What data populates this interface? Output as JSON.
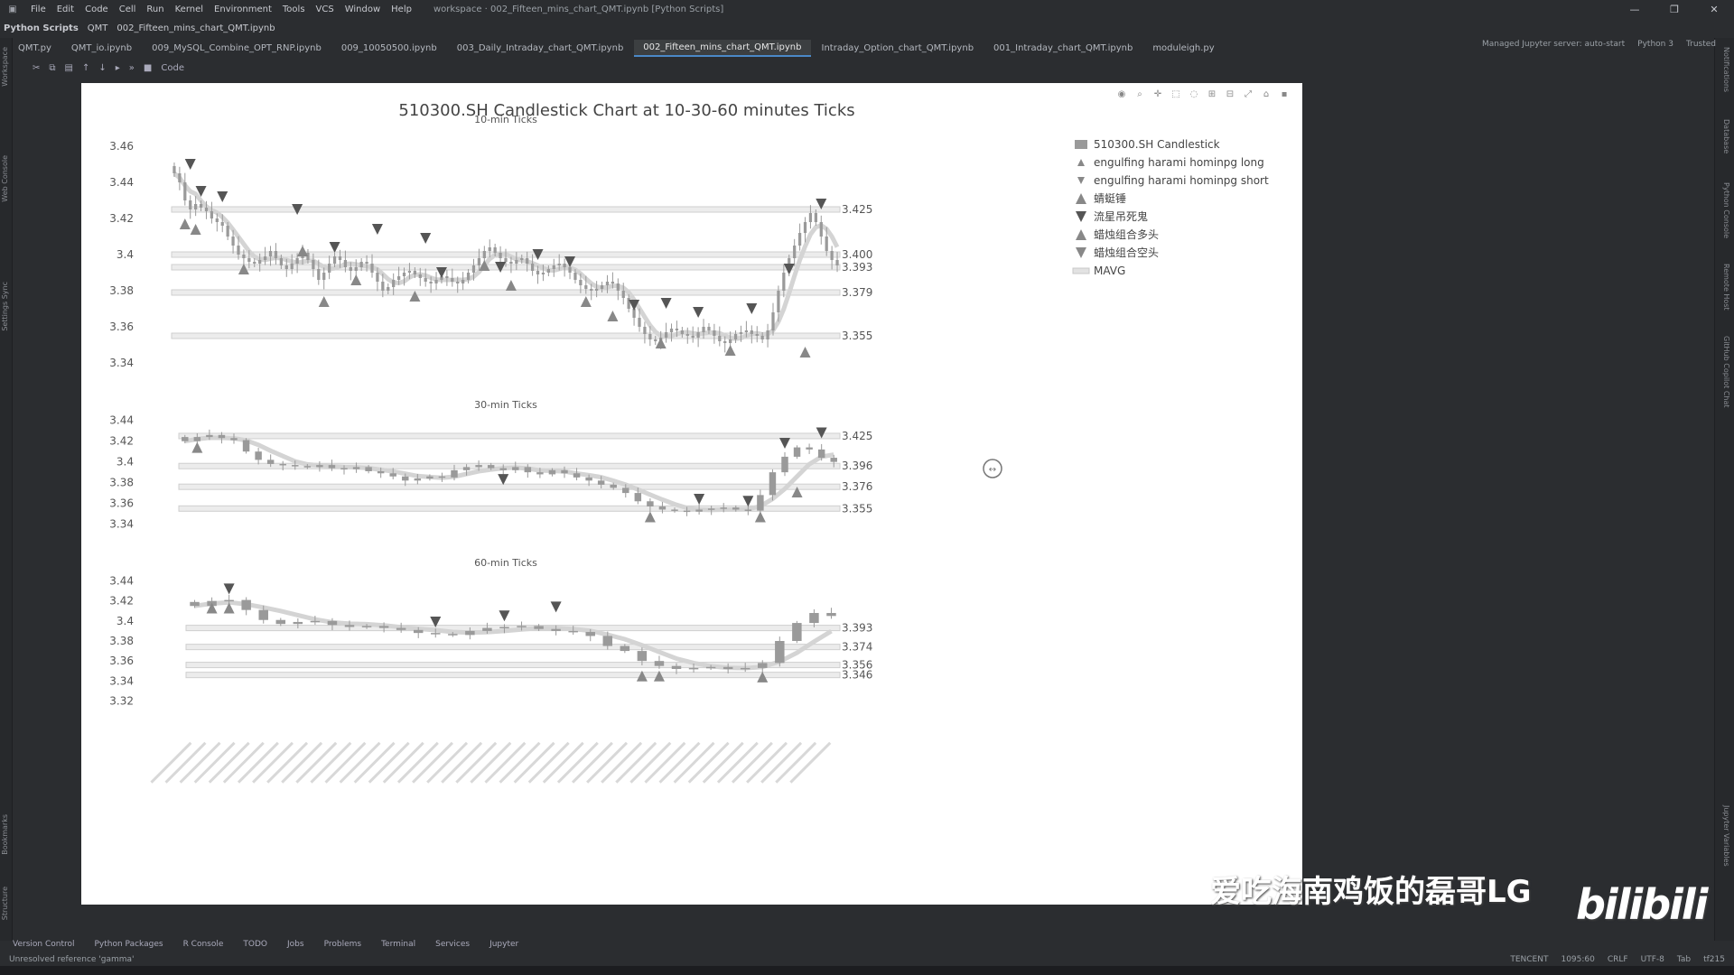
{
  "menubar": {
    "items": [
      "File",
      "Edit",
      "Code",
      "Cell",
      "Run",
      "Kernel",
      "Environment",
      "Tools",
      "VCS",
      "Window",
      "Help"
    ],
    "title": "workspace · 002_Fifteen_mins_chart_QMT.ipynb [Python Scripts]"
  },
  "navbar": {
    "crumbs": [
      "Python Scripts",
      "QMT",
      "002_Fifteen_mins_chart_QMT.ipynb"
    ]
  },
  "tabs": [
    {
      "label": "QMT.py",
      "active": false
    },
    {
      "label": "QMT_io.ipynb",
      "active": false
    },
    {
      "label": "009_MySQL_Combine_OPT_RNP.ipynb",
      "active": false
    },
    {
      "label": "009_10050500.ipynb",
      "active": false
    },
    {
      "label": "003_Daily_Intraday_chart_QMT.ipynb",
      "active": false
    },
    {
      "label": "002_Fifteen_mins_chart_QMT.ipynb",
      "active": true
    },
    {
      "label": "Intraday_Option_chart_QMT.ipynb",
      "active": false
    },
    {
      "label": "001_Intraday_chart_QMT.ipynb",
      "active": false
    },
    {
      "label": "moduleigh.py",
      "active": false
    }
  ],
  "tabright": [
    "Managed Jupyter server: auto-start",
    "Python 3",
    "Trusted"
  ],
  "toolbar": {
    "cell_type": "Code"
  },
  "leftstrip": [
    "Workspace",
    "Web Console",
    "Settings Sync",
    "Bookmarks",
    "Structure"
  ],
  "rightstrip": [
    "Notifications",
    "Database",
    "Python Console",
    "Remote Host",
    "GitHub Copilot Chat",
    "Jupyter Variables"
  ],
  "bottombar": [
    "Version Control",
    "Python Packages",
    "R Console",
    "TODO",
    "Jobs",
    "Problems",
    "Terminal",
    "Services",
    "Jupyter"
  ],
  "statusbar": {
    "left": "Unresolved reference 'gamma'",
    "right": [
      "TENCENT",
      "1095:60",
      "CRLF",
      "UTF-8",
      "Tab",
      "tf215"
    ]
  },
  "watermark": {
    "text": "爱吃海南鸡饭的磊哥LG",
    "logo": "bilibili"
  },
  "chart_data": {
    "type": "candlestick",
    "title": "510300.SH Candlestick Chart at 10-30-60 minutes Ticks",
    "legend": {
      "placement": "top-right",
      "entries": [
        {
          "label": "510300.SH Candlestick",
          "marker": "candle"
        },
        {
          "label": "engulfing harami hominpg long",
          "marker": "triangle-up-small"
        },
        {
          "label": "engulfing harami hominpg short",
          "marker": "triangle-down-small"
        },
        {
          "label": "蜻蜓锤",
          "marker": "triangle-up"
        },
        {
          "label": "流星吊死鬼",
          "marker": "triangle-down-dark"
        },
        {
          "label": "蜡烛组合多头",
          "marker": "triangle-up"
        },
        {
          "label": "蜡烛组合空头",
          "marker": "triangle-down"
        },
        {
          "label": "MAVG",
          "marker": "band"
        }
      ]
    },
    "colors": {
      "candle": "#9a9a9a",
      "marker": "#888888",
      "marker_dark": "#555555",
      "band": "#d4d4d4"
    },
    "panels": [
      {
        "subtitle": "10-min Ticks",
        "ylim": [
          3.335,
          3.465
        ],
        "yticks": [
          3.46,
          3.44,
          3.42,
          3.4,
          3.38,
          3.36,
          3.34
        ],
        "levels": [
          3.425,
          3.4,
          3.393,
          3.379,
          3.355
        ],
        "closes": [
          3.445,
          3.44,
          3.43,
          3.425,
          3.428,
          3.426,
          3.424,
          3.42,
          3.418,
          3.416,
          3.41,
          3.405,
          3.4,
          3.398,
          3.396,
          3.395,
          3.397,
          3.399,
          3.402,
          3.398,
          3.394,
          3.392,
          3.395,
          3.398,
          3.401,
          3.397,
          3.392,
          3.386,
          3.39,
          3.395,
          3.399,
          3.397,
          3.393,
          3.391,
          3.393,
          3.396,
          3.395,
          3.39,
          3.385,
          3.38,
          3.382,
          3.386,
          3.388,
          3.39,
          3.391,
          3.389,
          3.387,
          3.385,
          3.384,
          3.386,
          3.388,
          3.387,
          3.385,
          3.384,
          3.386,
          3.39,
          3.394,
          3.398,
          3.402,
          3.404,
          3.401,
          3.398,
          3.396,
          3.395,
          3.397,
          3.398,
          3.395,
          3.391,
          3.389,
          3.39,
          3.392,
          3.394,
          3.395,
          3.393,
          3.39,
          3.386,
          3.383,
          3.381,
          3.38,
          3.381,
          3.383,
          3.385,
          3.384,
          3.38,
          3.376,
          3.37,
          3.365,
          3.36,
          3.356,
          3.353,
          3.352,
          3.354,
          3.357,
          3.359,
          3.358,
          3.356,
          3.355,
          3.354,
          3.357,
          3.36,
          3.358,
          3.355,
          3.352,
          3.351,
          3.353,
          3.356,
          3.357,
          3.358,
          3.356,
          3.355,
          3.353,
          3.358,
          3.368,
          3.38,
          3.39,
          3.398,
          3.405,
          3.412,
          3.418,
          3.423,
          3.418,
          3.41,
          3.402,
          3.397,
          3.394
        ],
        "long_signals": [
          [
            2,
            3.417
          ],
          [
            4,
            3.414
          ],
          [
            13,
            3.392
          ],
          [
            24,
            3.402
          ],
          [
            28,
            3.374
          ],
          [
            34,
            3.386
          ],
          [
            45,
            3.377
          ],
          [
            58,
            3.394
          ],
          [
            63,
            3.383
          ],
          [
            77,
            3.374
          ],
          [
            82,
            3.366
          ],
          [
            91,
            3.351
          ],
          [
            104,
            3.347
          ],
          [
            118,
            3.346
          ]
        ],
        "short_signals": [
          [
            3,
            3.45
          ],
          [
            5,
            3.435
          ],
          [
            9,
            3.432
          ],
          [
            23,
            3.425
          ],
          [
            30,
            3.404
          ],
          [
            38,
            3.414
          ],
          [
            47,
            3.409
          ],
          [
            50,
            3.39
          ],
          [
            61,
            3.393
          ],
          [
            68,
            3.4
          ],
          [
            74,
            3.396
          ],
          [
            86,
            3.372
          ],
          [
            92,
            3.373
          ],
          [
            98,
            3.368
          ],
          [
            108,
            3.37
          ],
          [
            115,
            3.392
          ],
          [
            121,
            3.428
          ]
        ]
      },
      {
        "subtitle": "30-min Ticks",
        "ylim": [
          3.33,
          3.445
        ],
        "yticks": [
          3.44,
          3.42,
          3.4,
          3.38,
          3.36,
          3.34
        ],
        "levels": [
          3.425,
          3.396,
          3.376,
          3.355
        ],
        "closes": [
          3.42,
          3.424,
          3.426,
          3.423,
          3.421,
          3.41,
          3.402,
          3.398,
          3.397,
          3.396,
          3.395,
          3.397,
          3.394,
          3.393,
          3.395,
          3.391,
          3.389,
          3.386,
          3.382,
          3.384,
          3.386,
          3.385,
          3.392,
          3.395,
          3.397,
          3.394,
          3.392,
          3.395,
          3.39,
          3.388,
          3.392,
          3.389,
          3.385,
          3.382,
          3.378,
          3.375,
          3.37,
          3.362,
          3.357,
          3.354,
          3.353,
          3.352,
          3.354,
          3.355,
          3.356,
          3.354,
          3.353,
          3.368,
          3.39,
          3.405,
          3.414,
          3.412,
          3.404,
          3.4
        ],
        "long_signals": [
          [
            1,
            3.414
          ],
          [
            38,
            3.347
          ],
          [
            47,
            3.347
          ],
          [
            50,
            3.371
          ]
        ],
        "short_signals": [
          [
            26,
            3.383
          ],
          [
            42,
            3.364
          ],
          [
            46,
            3.362
          ],
          [
            49,
            3.418
          ],
          [
            52,
            3.428
          ]
        ]
      },
      {
        "subtitle": "60-min Ticks",
        "ylim": [
          3.315,
          3.445
        ],
        "yticks": [
          3.44,
          3.42,
          3.4,
          3.38,
          3.36,
          3.34,
          3.32
        ],
        "levels": [
          3.393,
          3.374,
          3.356,
          3.346
        ],
        "closes": [
          3.415,
          3.42,
          3.421,
          3.411,
          3.401,
          3.397,
          3.399,
          3.4,
          3.396,
          3.394,
          3.395,
          3.393,
          3.391,
          3.388,
          3.387,
          3.386,
          3.39,
          3.393,
          3.394,
          3.395,
          3.392,
          3.39,
          3.389,
          3.385,
          3.375,
          3.37,
          3.36,
          3.355,
          3.352,
          3.353,
          3.354,
          3.352,
          3.353,
          3.358,
          3.38,
          3.398,
          3.408,
          3.405
        ],
        "long_signals": [
          [
            1,
            3.413
          ],
          [
            2,
            3.413
          ],
          [
            26,
            3.345
          ],
          [
            27,
            3.345
          ],
          [
            33,
            3.344
          ]
        ],
        "short_signals": [
          [
            2,
            3.432
          ],
          [
            14,
            3.399
          ],
          [
            18,
            3.405
          ],
          [
            21,
            3.414
          ]
        ]
      }
    ],
    "x_tick_count": 45
  }
}
